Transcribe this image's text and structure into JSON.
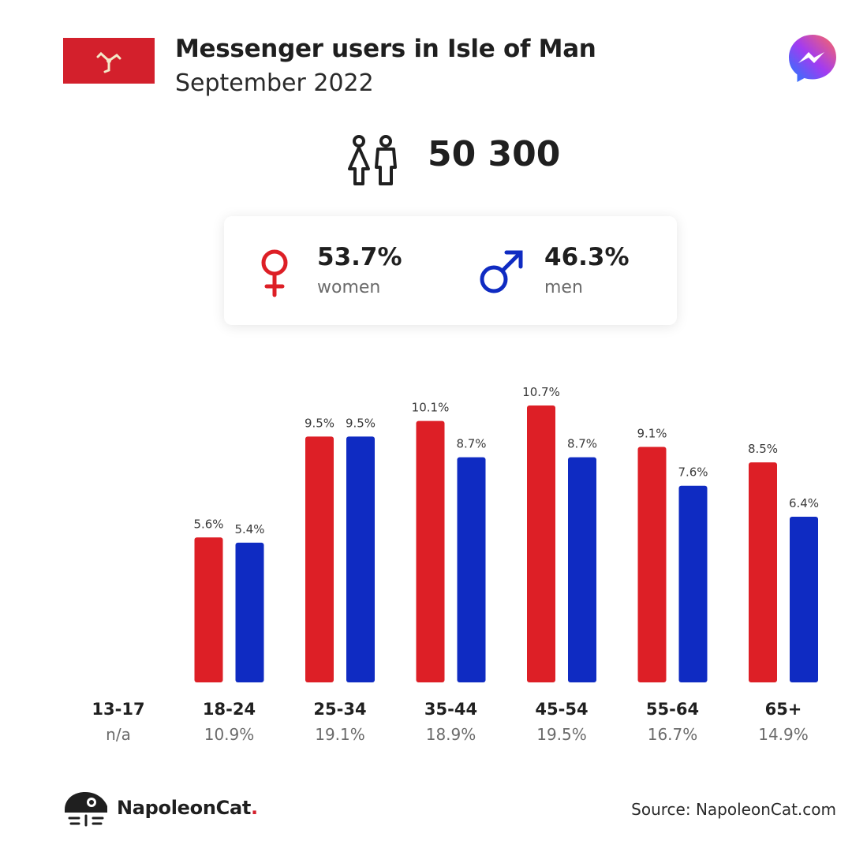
{
  "header": {
    "title": "Messenger users in Isle of Man",
    "subtitle": "September 2022"
  },
  "icons": {
    "flag": "isle-of-man-flag",
    "app": "messenger-icon",
    "users": "users-icon",
    "female": "female-symbol-icon",
    "male": "male-symbol-icon",
    "brand": "napoleoncat-logo"
  },
  "summary": {
    "total_users": "50 300",
    "women_pct": "53.7%",
    "women_label": "women",
    "men_pct": "46.3%",
    "men_label": "men"
  },
  "colors": {
    "women": "#dd1f26",
    "men": "#0f2bc2",
    "flag": "#d3202c"
  },
  "chart_data": {
    "type": "bar",
    "categories": [
      "13-17",
      "18-24",
      "25-34",
      "35-44",
      "45-54",
      "55-64",
      "65+"
    ],
    "category_shares": [
      "n/a",
      "10.9%",
      "19.1%",
      "18.9%",
      "19.5%",
      "16.7%",
      "14.9%"
    ],
    "series": [
      {
        "color": "#dd1f26",
        "values": [
          null,
          5.6,
          9.5,
          10.1,
          10.7,
          9.1,
          8.5
        ],
        "labels": [
          "",
          "5.6%",
          "9.5%",
          "10.1%",
          "10.7%",
          "9.1%",
          "8.5%"
        ]
      },
      {
        "color": "#0f2bc2",
        "values": [
          null,
          5.4,
          9.5,
          8.7,
          8.7,
          7.6,
          6.4
        ],
        "labels": [
          "",
          "5.4%",
          "9.5%",
          "8.7%",
          "8.7%",
          "7.6%",
          "6.4%"
        ]
      }
    ],
    "ylim": [
      0,
      10.7
    ],
    "grid": false,
    "legend": "none"
  },
  "footer": {
    "brand": "NapoleonCat",
    "brand_dot": ".",
    "source": "Source: NapoleonCat.com"
  }
}
